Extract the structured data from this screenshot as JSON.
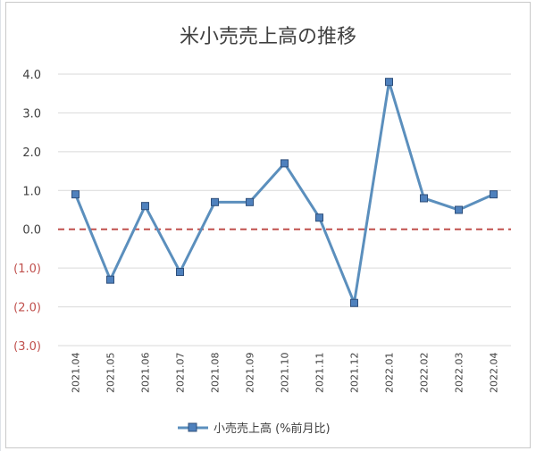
{
  "chart_data": {
    "type": "line",
    "title": "米小売売上高の推移",
    "categories": [
      "2021.04",
      "2021.05",
      "2021.06",
      "2021.07",
      "2021.08",
      "2021.09",
      "2021.10",
      "2021.11",
      "2021.12",
      "2022.01",
      "2022.02",
      "2022.03",
      "2022.04"
    ],
    "series": [
      {
        "name": "小売売上高 (%前月比)",
        "values": [
          0.9,
          -1.3,
          0.6,
          -1.1,
          0.7,
          0.7,
          1.7,
          0.3,
          -1.9,
          3.8,
          0.8,
          0.5,
          0.9
        ]
      }
    ],
    "yticks": [
      4.0,
      3.0,
      2.0,
      1.0,
      0.0,
      -1.0,
      -2.0,
      -3.0
    ],
    "ytick_labels": [
      "4.0",
      "3.0",
      "2.0",
      "1.0",
      "0.0",
      "(1.0)",
      "(2.0)",
      "(3.0)"
    ],
    "ylim": [
      -3.0,
      4.0
    ],
    "grid": true,
    "zero_line": true,
    "legend_position": "bottom",
    "colors": {
      "line": "#5b8fbd",
      "marker_fill": "#4f81bd",
      "marker_stroke": "#2f4f7a",
      "zero_line": "#c0504d",
      "positive_label": "#404040",
      "negative_label": "#c0504d",
      "grid": "#d9d9d9"
    }
  }
}
